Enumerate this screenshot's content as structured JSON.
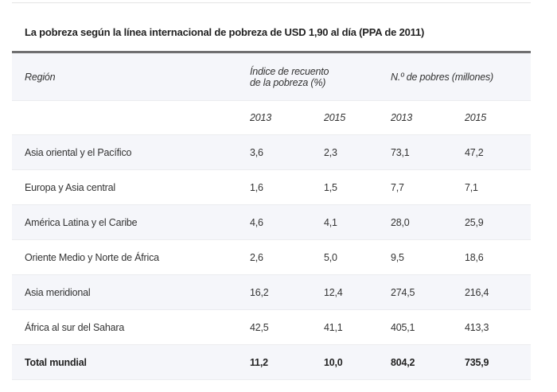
{
  "title": "La pobreza según la línea internacional de pobreza de USD 1,90 al día (PPA de 2011)",
  "header": {
    "region": "Región",
    "index": "Índice de recuento de la pobreza (%)",
    "index_line1": "Índice de recuento",
    "index_line2": "de la pobreza (%)",
    "poor": "N.º de pobres (millones)",
    "years": [
      "2013",
      "2015",
      "2013",
      "2015"
    ]
  },
  "rows": [
    [
      "Asia oriental y el Pacífico",
      "3,6",
      "2,3",
      "73,1",
      "47,2"
    ],
    [
      "Europa y Asia central",
      "1,6",
      "1,5",
      "7,7",
      "7,1"
    ],
    [
      "América Latina y el Caribe",
      "4,6",
      "4,1",
      "28,0",
      "25,9"
    ],
    [
      "Oriente Medio y Norte de África",
      "2,6",
      "5,0",
      "9,5",
      "18,6"
    ],
    [
      "Asia meridional",
      "16,2",
      "12,4",
      "274,5",
      "216,4"
    ],
    [
      "África al sur del Sahara",
      "42,5",
      "41,1",
      "405,1",
      "413,3"
    ]
  ],
  "total": [
    "Total mundial",
    "11,2",
    "10,0",
    "804,2",
    "735,9"
  ]
}
